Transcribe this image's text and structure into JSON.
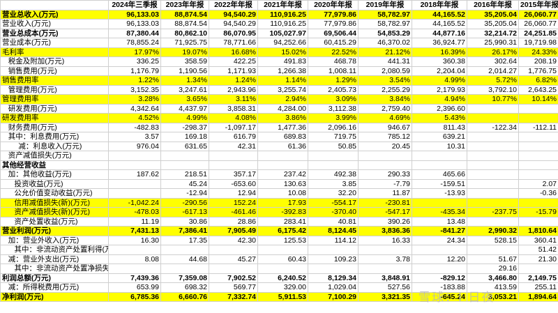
{
  "columns": [
    "",
    "2024年三季报",
    "2023年年报",
    "2022年年报",
    "2021年年报",
    "2020年年报",
    "2019年年报",
    "2018年年报",
    "2016年年报",
    "2015年年报"
  ],
  "rows": [
    {
      "label": "营业总收入(万元)",
      "style": "yellow bold",
      "values": [
        "96,133.03",
        "88,874.54",
        "94,540.29",
        "110,916.25",
        "77,979.86",
        "58,782.97",
        "44,165.52",
        "35,205.04",
        "26,060.77"
      ]
    },
    {
      "label": "营业收入(万元)",
      "style": "",
      "values": [
        "96,133.03",
        "88,874.54",
        "94,540.29",
        "110,916.25",
        "77,979.86",
        "58,782.97",
        "44,165.52",
        "35,205.04",
        "26,060.77"
      ]
    },
    {
      "label": "营业总成本(万元)",
      "style": "bold",
      "values": [
        "87,380.44",
        "80,862.10",
        "86,070.95",
        "105,027.97",
        "69,506.44",
        "54,853.29",
        "44,877.16",
        "32,214.72",
        "24,251.85"
      ]
    },
    {
      "label": "营业成本(万元)",
      "style": "",
      "values": [
        "78,855.24",
        "71,925.75",
        "78,771.66",
        "94,252.66",
        "60,415.29",
        "46,370.02",
        "36,924.77",
        "25,990.31",
        "19,719.98"
      ]
    },
    {
      "label": "毛利率",
      "style": "yellow",
      "values": [
        "17.97%",
        "19.07%",
        "16.68%",
        "15.02%",
        "22.52%",
        "21.12%",
        "16.39%",
        "26.17%",
        "24.33%"
      ]
    },
    {
      "label": "   税金及附加(万元)",
      "style": "",
      "values": [
        "336.25",
        "358.59",
        "422.25",
        "491.83",
        "468.78",
        "441.31",
        "360.38",
        "302.64",
        "208.19"
      ]
    },
    {
      "label": "   销售费用(万元)",
      "style": "",
      "values": [
        "1,176.79",
        "1,190.56",
        "1,171.93",
        "1,266.38",
        "1,008.11",
        "2,080.59",
        "2,204.04",
        "2,014.27",
        "1,776.75"
      ]
    },
    {
      "label": "销售费用率",
      "style": "yellow",
      "values": [
        "1.22%",
        "1.34%",
        "1.24%",
        "1.14%",
        "1.29%",
        "3.54%",
        "4.99%",
        "5.72%",
        "6.82%"
      ]
    },
    {
      "label": "   管理费用(万元)",
      "style": "",
      "values": [
        "3,152.35",
        "3,247.61",
        "2,943.96",
        "3,255.74",
        "2,405.73",
        "2,255.29",
        "2,179.93",
        "3,792.10",
        "2,643.25"
      ]
    },
    {
      "label": "管理费用率",
      "style": "yellow",
      "values": [
        "3.28%",
        "3.65%",
        "3.11%",
        "2.94%",
        "3.09%",
        "3.84%",
        "4.94%",
        "10.77%",
        "10.14%"
      ]
    },
    {
      "label": "   研发费用(万元)",
      "style": "",
      "values": [
        "4,342.64",
        "4,437.97",
        "3,858.31",
        "4,284.00",
        "3,112.38",
        "2,759.40",
        "2,396.60",
        "",
        ""
      ]
    },
    {
      "label": "研发费用率",
      "style": "yellow",
      "values": [
        "4.52%",
        "4.99%",
        "4.08%",
        "3.86%",
        "3.99%",
        "4.69%",
        "5.43%",
        "",
        ""
      ]
    },
    {
      "label": "   财务费用(万元)",
      "style": "",
      "values": [
        "-482.83",
        "-298.37",
        "-1,097.17",
        "1,477.36",
        "2,096.16",
        "946.67",
        "811.43",
        "-122.34",
        "-112.11"
      ]
    },
    {
      "label": "   其中：利息费用(万元)",
      "style": "",
      "values": [
        "3.57",
        "169.18",
        "616.79",
        "689.83",
        "719.75",
        "785.12",
        "639.21",
        "",
        ""
      ]
    },
    {
      "label": "        减：利息收入(万元)",
      "style": "",
      "values": [
        "976.04",
        "631.65",
        "42.31",
        "61.36",
        "50.85",
        "20.45",
        "10.31",
        "",
        ""
      ]
    },
    {
      "label": "   资产减值损失(万元)",
      "style": "",
      "values": [
        "",
        "",
        "",
        "",
        "",
        "",
        "",
        "",
        ""
      ]
    },
    {
      "label": "其他经营收益",
      "style": "bold",
      "values": [
        "",
        "",
        "",
        "",
        "",
        "",
        "",
        "",
        ""
      ]
    },
    {
      "label": "   加：其他收益(万元)",
      "style": "",
      "values": [
        "187.62",
        "218.51",
        "357.17",
        "237.42",
        "492.38",
        "290.33",
        "465.66",
        "",
        ""
      ]
    },
    {
      "label": "      投资收益(万元)",
      "style": "",
      "values": [
        "",
        "45.24",
        "-653.60",
        "130.63",
        "3.85",
        "-7.79",
        "-159.51",
        "",
        "2.07"
      ]
    },
    {
      "label": "      公允价值变动收益(万元)",
      "style": "",
      "values": [
        "",
        "-12.94",
        "12.94",
        "10.08",
        "32.20",
        "11.87",
        "-13.93",
        "",
        "-0.36"
      ]
    },
    {
      "label": "      信用减值损失(新)(万元)",
      "style": "yellow",
      "values": [
        "-1,042.24",
        "-290.56",
        "152.24",
        "17.93",
        "-554.17",
        "-230.81",
        "",
        "",
        ""
      ]
    },
    {
      "label": "      资产减值损失(新)(万元)",
      "style": "yellow",
      "values": [
        "-478.03",
        "-617.13",
        "-461.46",
        "-392.83",
        "-370.40",
        "-547.17",
        "-435.34",
        "-237.75",
        "-15.79"
      ]
    },
    {
      "label": "      资产处置收益(万元)",
      "style": "",
      "values": [
        "11.19",
        "30.86",
        "28.86",
        "283.41",
        "40.81",
        "390.26",
        "13.48",
        "",
        ""
      ]
    },
    {
      "label": "营业利润(万元)",
      "style": "yellow bold",
      "values": [
        "7,431.13",
        "7,386.41",
        "7,905.49",
        "6,175.42",
        "8,124.45",
        "3,836.36",
        "-841.27",
        "2,990.32",
        "1,810.64"
      ]
    },
    {
      "label": "   加：营业外收入(万元)",
      "style": "",
      "values": [
        "16.30",
        "17.35",
        "42.30",
        "125.53",
        "114.12",
        "16.33",
        "24.34",
        "528.15",
        "360.41"
      ]
    },
    {
      "label": "      其中：非流动资产处置利得(万元)",
      "style": "",
      "values": [
        "",
        "",
        "",
        "",
        "",
        "",
        "",
        "",
        "51.42"
      ]
    },
    {
      "label": "   减：营业外支出(万元)",
      "style": "",
      "values": [
        "8.08",
        "44.68",
        "45.27",
        "60.43",
        "109.23",
        "3.78",
        "12.20",
        "51.67",
        "21.30"
      ]
    },
    {
      "label": "      其中：非流动资产处置净损失(万元)",
      "style": "",
      "values": [
        "",
        "",
        "",
        "",
        "",
        "",
        "",
        "29.16",
        ""
      ]
    },
    {
      "label": "利润总额(万元)",
      "style": "bold",
      "values": [
        "7,439.36",
        "7,359.08",
        "7,902.52",
        "6,240.52",
        "8,129.34",
        "3,848.91",
        "-829.12",
        "3,466.80",
        "2,149.75"
      ]
    },
    {
      "label": "   减：所得税费用(万元)",
      "style": "",
      "values": [
        "653.99",
        "698.32",
        "569.77",
        "329.00",
        "1,029.04",
        "527.56",
        "-183.88",
        "413.59",
        "255.11"
      ]
    },
    {
      "label": "净利润(万元)",
      "style": "yellow bold",
      "values": [
        "6,785.36",
        "6,660.76",
        "7,332.74",
        "5,911.53",
        "7,100.29",
        "3,321.35",
        "-645.24",
        "3,053.21",
        "1,894.64"
      ]
    }
  ],
  "watermark": "雪球：I 日夜"
}
